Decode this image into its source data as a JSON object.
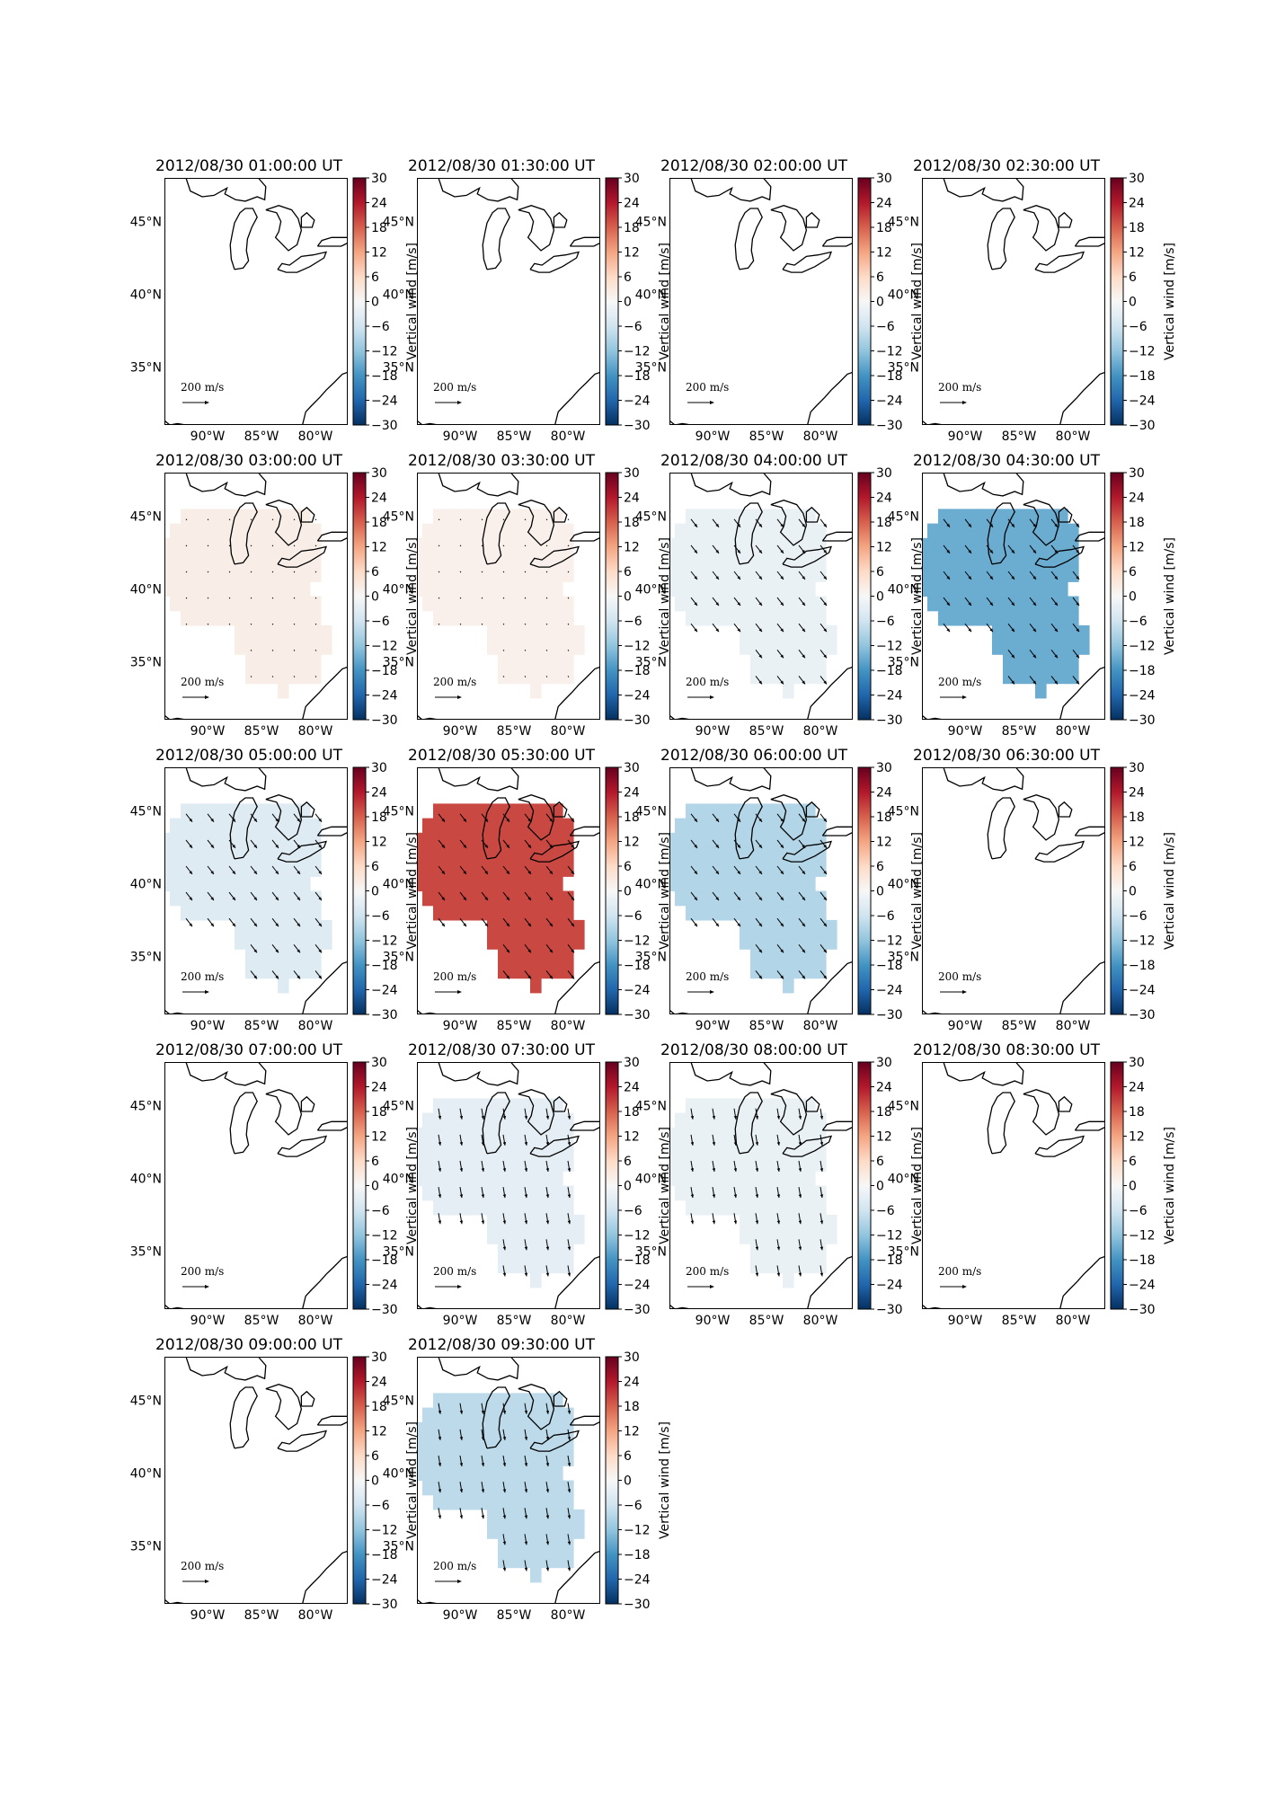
{
  "figure": {
    "colorbar_label": "Vertical wind [m/s]",
    "colorbar_ticks": [
      30,
      24,
      18,
      12,
      6,
      0,
      -6,
      -12,
      -18,
      -24,
      -30
    ],
    "colorbar_tick_labels": [
      "30",
      "24",
      "18",
      "12",
      "6",
      "0",
      "−06",
      "−12",
      "−18",
      "−24",
      "−30"
    ],
    "colormap": "RdBu_r",
    "colorbar_range": [
      -30,
      30
    ],
    "lat_ticks": [
      "45°N",
      "40°N",
      "35°N"
    ],
    "lon_ticks": [
      "90°W",
      "85°W",
      "80°W"
    ],
    "scale_label": "200 m/s",
    "map_extent": {
      "lon": [
        -94,
        -77
      ],
      "lat": [
        31,
        48
      ]
    }
  },
  "panels": [
    {
      "title": "2012/08/30 01:00:00 UT",
      "value": null,
      "arrows": "none"
    },
    {
      "title": "2012/08/30 01:30:00 UT",
      "value": null,
      "arrows": "none"
    },
    {
      "title": "2012/08/30 02:00:00 UT",
      "value": null,
      "arrows": "none"
    },
    {
      "title": "2012/08/30 02:30:00 UT",
      "value": null,
      "arrows": "none"
    },
    {
      "title": "2012/08/30 03:00:00 UT",
      "value": 2,
      "arrows": "tiny"
    },
    {
      "title": "2012/08/30 03:30:00 UT",
      "value": 1.5,
      "arrows": "tiny"
    },
    {
      "title": "2012/08/30 04:00:00 UT",
      "value": -2,
      "arrows": "se"
    },
    {
      "title": "2012/08/30 04:30:00 UT",
      "value": -15,
      "arrows": "se"
    },
    {
      "title": "2012/08/30 05:00:00 UT",
      "value": -4,
      "arrows": "se"
    },
    {
      "title": "2012/08/30 05:30:00 UT",
      "value": 20,
      "arrows": "se"
    },
    {
      "title": "2012/08/30 06:00:00 UT",
      "value": -9,
      "arrows": "se"
    },
    {
      "title": "2012/08/30 06:30:00 UT",
      "value": null,
      "arrows": "none"
    },
    {
      "title": "2012/08/30 07:00:00 UT",
      "value": null,
      "arrows": "none"
    },
    {
      "title": "2012/08/30 07:30:00 UT",
      "value": -3,
      "arrows": "s"
    },
    {
      "title": "2012/08/30 08:00:00 UT",
      "value": -2,
      "arrows": "s"
    },
    {
      "title": "2012/08/30 08:30:00 UT",
      "value": null,
      "arrows": "none"
    },
    {
      "title": "2012/08/30 09:00:00 UT",
      "value": null,
      "arrows": "none"
    },
    {
      "title": "2012/08/30 09:30:00 UT",
      "value": -8,
      "arrows": "s"
    }
  ],
  "colors": {
    "frame": "#000000",
    "coast": "#000000"
  }
}
